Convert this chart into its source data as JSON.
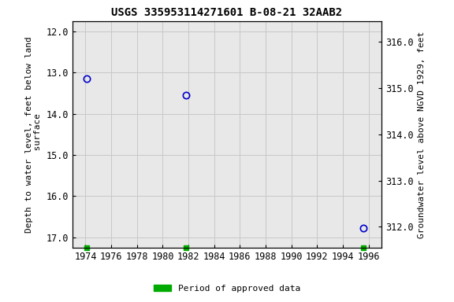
{
  "title": "USGS 335953114271601 B-08-21 32AAB2",
  "points": [
    {
      "year": 1974.1,
      "depth": 13.15
    },
    {
      "year": 1981.8,
      "depth": 13.55
    },
    {
      "year": 1995.6,
      "depth": 16.78
    }
  ],
  "green_markers": [
    {
      "year": 1974.1
    },
    {
      "year": 1981.8
    },
    {
      "year": 1995.6
    }
  ],
  "xlim": [
    1973.0,
    1997.0
  ],
  "xticks": [
    1974,
    1976,
    1978,
    1980,
    1982,
    1984,
    1986,
    1988,
    1990,
    1992,
    1994,
    1996
  ],
  "ylim_left": [
    17.25,
    11.75
  ],
  "yticks_left": [
    12.0,
    13.0,
    14.0,
    15.0,
    16.0,
    17.0
  ],
  "ylim_right": [
    311.55,
    316.45
  ],
  "yticks_right": [
    312.0,
    313.0,
    314.0,
    315.0,
    316.0
  ],
  "ylabel_left": "Depth to water level, feet below land\n surface",
  "ylabel_right": "Groundwater level above NGVD 1929, feet",
  "legend_label": "Period of approved data",
  "legend_color": "#00aa00",
  "point_color": "#0000cc",
  "grid_color": "#c8c8c8",
  "background_color": "#f0f0f0",
  "plot_bg_color": "#e8e8e8",
  "title_fontsize": 10,
  "label_fontsize": 8,
  "tick_fontsize": 8.5
}
